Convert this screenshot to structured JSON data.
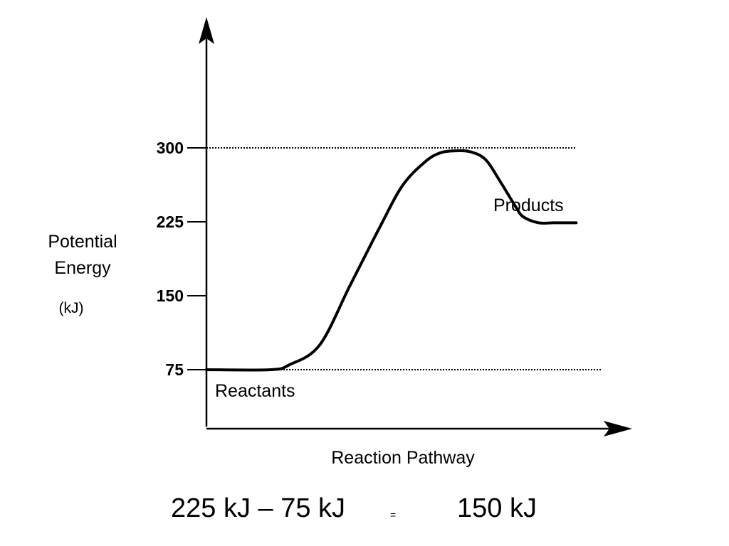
{
  "chart_data": {
    "type": "line",
    "title": "",
    "xlabel": "Reaction Pathway",
    "ylabel": [
      "Potential",
      "Energy"
    ],
    "yunit": "(kJ)",
    "yticks": [
      75,
      150,
      225,
      300
    ],
    "reference_lines": [
      75,
      300
    ],
    "annotations": {
      "reactants": "Reactants",
      "products": "Products"
    },
    "series": [
      {
        "x": [
          0,
          17,
          22,
          30,
          38,
          46,
          52,
          58,
          62,
          66,
          70,
          74,
          78,
          82,
          84,
          88,
          92,
          98
        ],
        "y": [
          75,
          75,
          80,
          100,
          160,
          220,
          262,
          286,
          295,
          297,
          296,
          288,
          265,
          240,
          230,
          224,
          224,
          224
        ]
      }
    ],
    "grid": false
  },
  "equation": {
    "left": "225 kJ – 75 kJ",
    "equals": "=",
    "result": "150 kJ"
  }
}
